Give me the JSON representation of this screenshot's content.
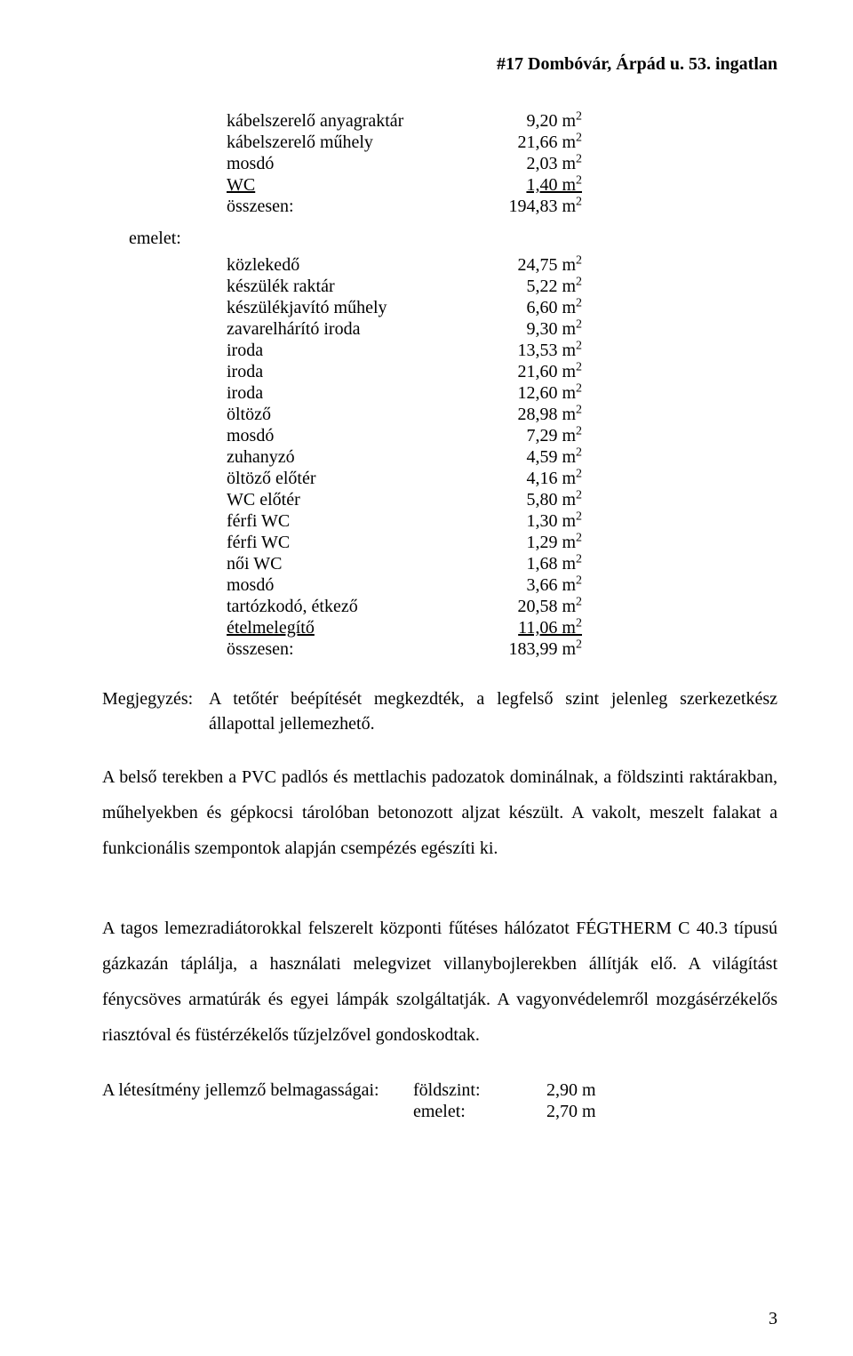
{
  "header": {
    "text": "#17  Dombóvár, Árpád u. 53. ingatlan"
  },
  "page_number": "3",
  "unit": "m",
  "unit_sup": "2",
  "block1": {
    "r": [
      {
        "label": "kábelszerelő anyagraktár",
        "value": "9,20 m"
      },
      {
        "label": "kábelszerelő műhely",
        "value": "21,66 m"
      },
      {
        "label": "mosdó",
        "value": "2,03 m"
      },
      {
        "label": "WC",
        "value": "1,40 m",
        "underlined": true
      },
      {
        "label": "összesen:",
        "value": "194,83 m"
      }
    ]
  },
  "emelet_label": "emelet:",
  "block2": {
    "r": [
      {
        "label": "közlekedő",
        "value": "24,75 m"
      },
      {
        "label": "készülék raktár",
        "value": "5,22 m"
      },
      {
        "label": "készülékjavító műhely",
        "value": "6,60 m"
      },
      {
        "label": "zavarelhárító iroda",
        "value": "9,30 m"
      },
      {
        "label": "iroda",
        "value": "13,53 m"
      },
      {
        "label": "iroda",
        "value": "21,60 m"
      },
      {
        "label": "iroda",
        "value": "12,60 m"
      },
      {
        "label": "öltöző",
        "value": "28,98 m"
      },
      {
        "label": "mosdó",
        "value": "7,29 m"
      },
      {
        "label": "zuhanyzó",
        "value": "4,59 m"
      },
      {
        "label": "öltöző előtér",
        "value": "4,16 m"
      },
      {
        "label": "WC előtér",
        "value": "5,80 m"
      },
      {
        "label": "férfi WC",
        "value": "1,30 m"
      },
      {
        "label": "férfi WC",
        "value": "1,29 m"
      },
      {
        "label": "női WC",
        "value": "1,68 m"
      },
      {
        "label": "mosdó",
        "value": "3,66 m"
      },
      {
        "label": "tartózkodó, étkező",
        "value": "20,58 m"
      },
      {
        "label": "ételmelegítő",
        "value": "11,06 m",
        "underlined": true
      },
      {
        "label": "összesen:",
        "value": "183,99 m"
      }
    ]
  },
  "megjegyzes": {
    "label": "Megjegyzés:",
    "text": "A tetőtér beépítését megkezdték, a legfelső szint jelenleg szerkezetkész állapottal jellemezhető."
  },
  "para1": "A belső terekben a PVC padlós és mettlachis padozatok dominálnak, a földszinti raktárakban, műhelyekben és gépkocsi tárolóban betonozott aljzat készült. A vakolt, meszelt falakat a funkcionális szempontok alapján csempézés egészíti ki.",
  "para2": "A tagos lemezradiátorokkal felszerelt központi fűtéses hálózatot FÉGTHERM C 40.3 típusú gázkazán táplálja, a használati melegvizet villanybojlerekben állítják elő. A világítást fénycsöves armatúrák és egyei lámpák szolgáltatják. A vagyonvédelemről mozgásérzékelős riasztóval és füstérzékelős tűzjelzővel gondoskodtak.",
  "belmag": {
    "label": "A létesítmény jellemző belmagasságai:",
    "rows": [
      {
        "k": "földszint:",
        "v": "2,90 m"
      },
      {
        "k": "emelet:",
        "v": "2,70 m"
      }
    ]
  }
}
